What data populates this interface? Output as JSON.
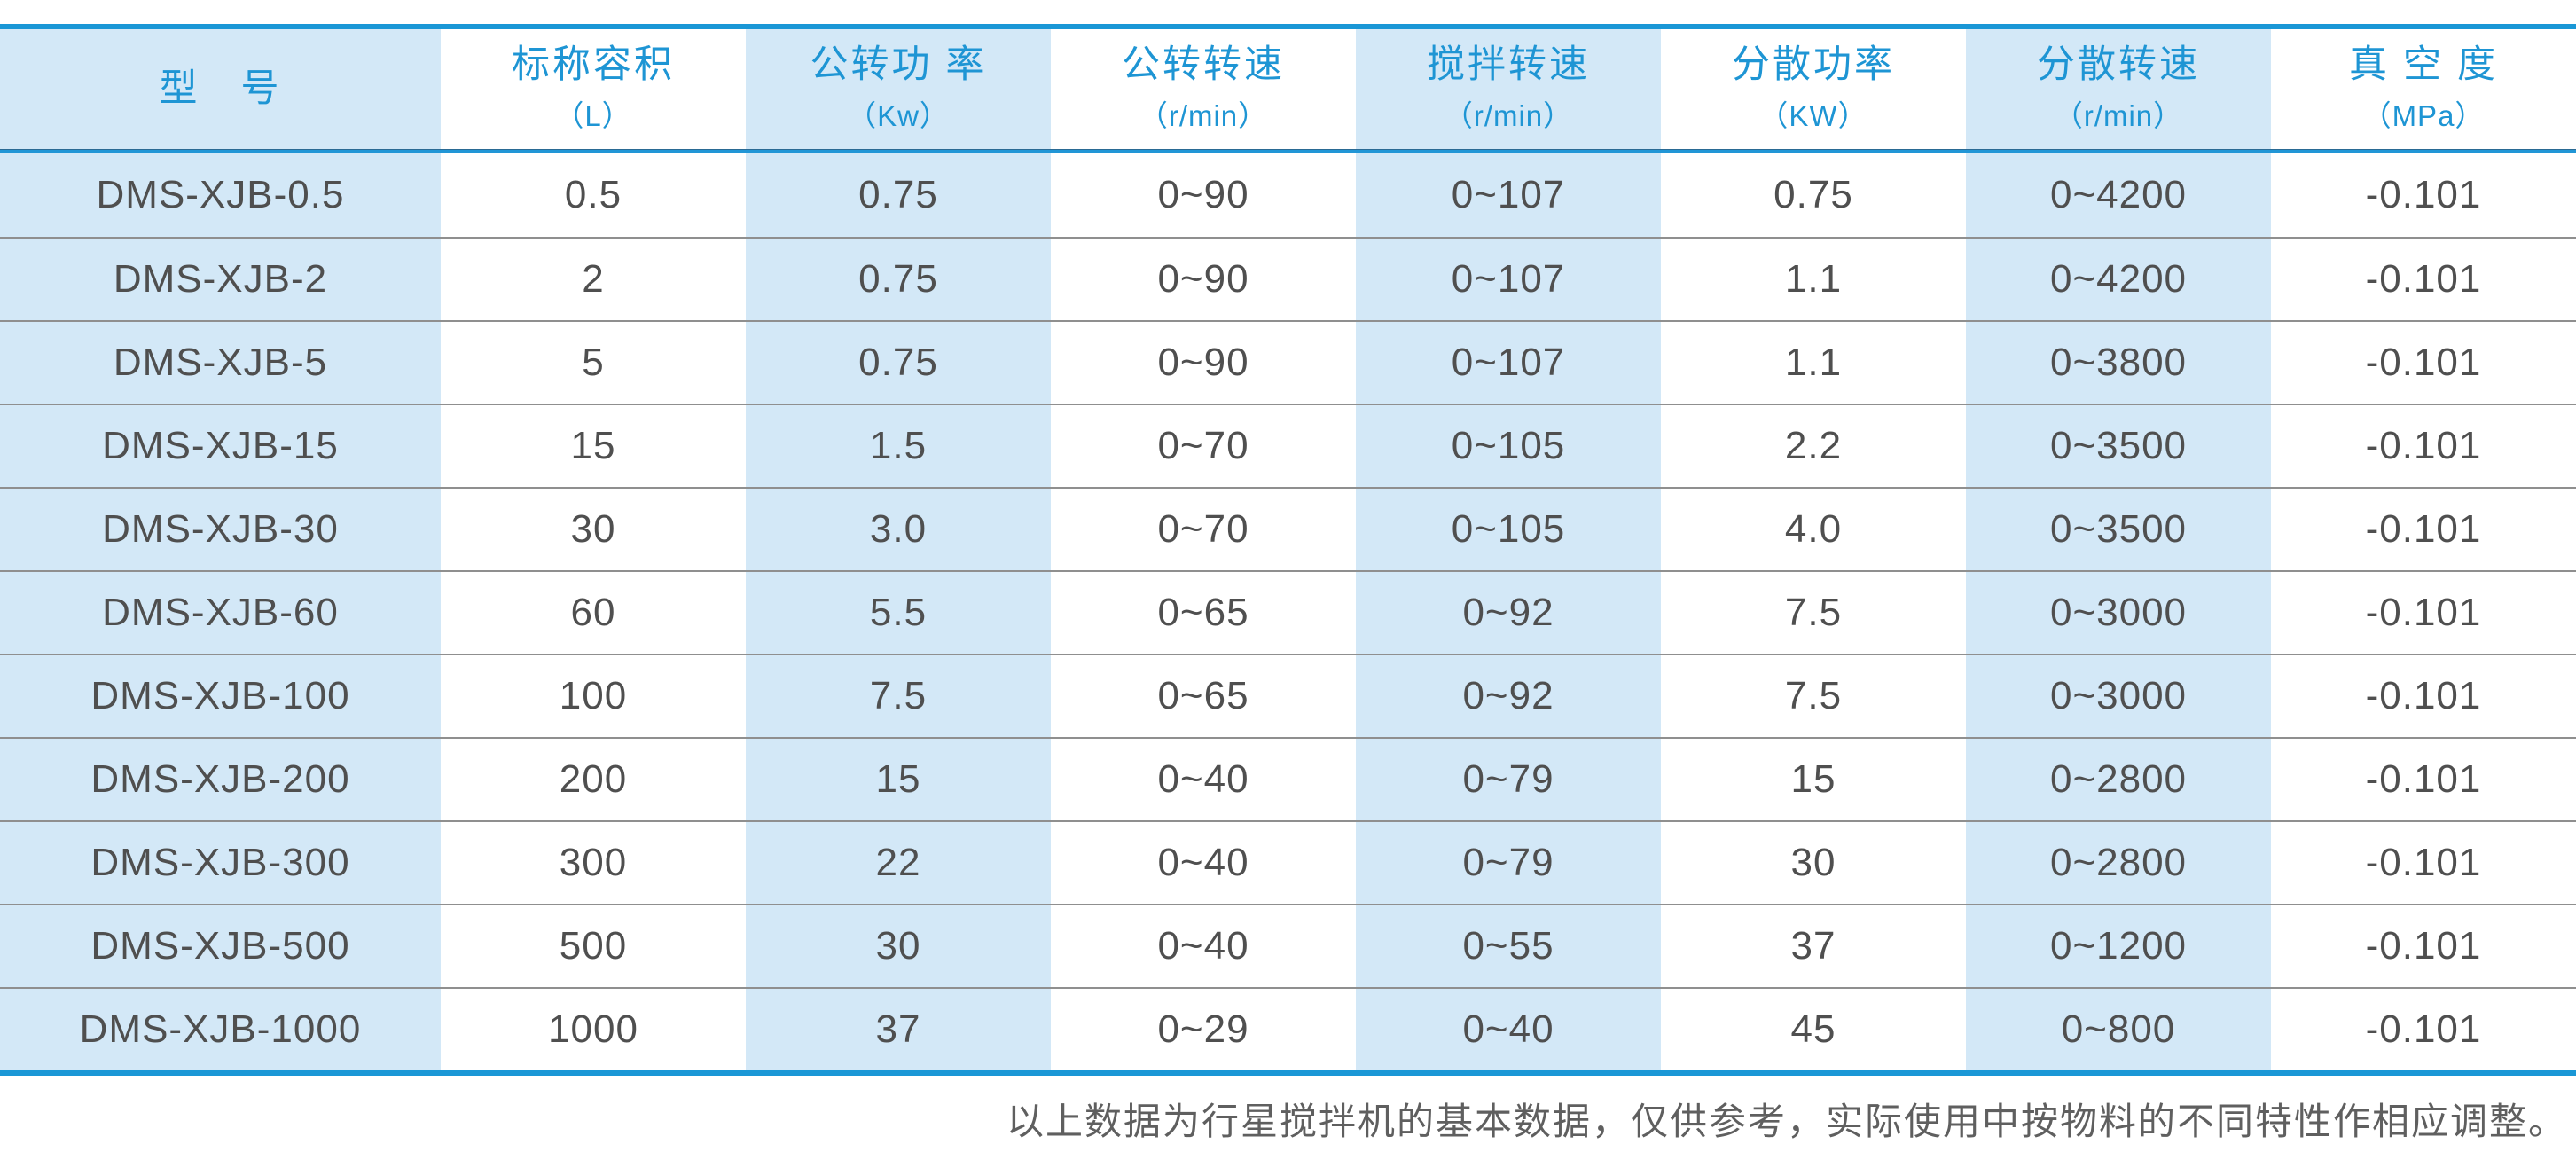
{
  "table": {
    "columns": [
      {
        "title": "型　号",
        "unit": ""
      },
      {
        "title": "标称容积",
        "unit": "（L）"
      },
      {
        "title": "公转功 率",
        "unit": "（Kw）"
      },
      {
        "title": "公转转速",
        "unit": "（r/min）"
      },
      {
        "title": "搅拌转速",
        "unit": "（r/min）"
      },
      {
        "title": "分散功率",
        "unit": "（KW）"
      },
      {
        "title": "分散转速",
        "unit": "（r/min）"
      },
      {
        "title": "真 空 度",
        "unit": "（MPa）"
      }
    ],
    "rows": [
      [
        "DMS-XJB-0.5",
        "0.5",
        "0.75",
        "0~90",
        "0~107",
        "0.75",
        "0~4200",
        "-0.101"
      ],
      [
        "DMS-XJB-2",
        "2",
        "0.75",
        "0~90",
        "0~107",
        "1.1",
        "0~4200",
        "-0.101"
      ],
      [
        "DMS-XJB-5",
        "5",
        "0.75",
        "0~90",
        "0~107",
        "1.1",
        "0~3800",
        "-0.101"
      ],
      [
        "DMS-XJB-15",
        "15",
        "1.5",
        "0~70",
        "0~105",
        "2.2",
        "0~3500",
        "-0.101"
      ],
      [
        "DMS-XJB-30",
        "30",
        "3.0",
        "0~70",
        "0~105",
        "4.0",
        "0~3500",
        "-0.101"
      ],
      [
        "DMS-XJB-60",
        "60",
        "5.5",
        "0~65",
        "0~92",
        "7.5",
        "0~3000",
        "-0.101"
      ],
      [
        "DMS-XJB-100",
        "100",
        "7.5",
        "0~65",
        "0~92",
        "7.5",
        "0~3000",
        "-0.101"
      ],
      [
        "DMS-XJB-200",
        "200",
        "15",
        "0~40",
        "0~79",
        "15",
        "0~2800",
        "-0.101"
      ],
      [
        "DMS-XJB-300",
        "300",
        "22",
        "0~40",
        "0~79",
        "30",
        "0~2800",
        "-0.101"
      ],
      [
        "DMS-XJB-500",
        "500",
        "30",
        "0~40",
        "0~55",
        "37",
        "0~1200",
        "-0.101"
      ],
      [
        "DMS-XJB-1000",
        "1000",
        "37",
        "0~29",
        "0~40",
        "45",
        "0~800",
        "-0.101"
      ]
    ]
  },
  "footer": {
    "note": "以上数据为行星搅拌机的基本数据，仅供参考，实际使用中按物料的不同特性作相应调整。"
  },
  "colors": {
    "accent": "#1a97d6",
    "header_text": "#1e95d4",
    "stripe": "#d3e8f7",
    "body_text": "#4f4f4f",
    "row_line": "#8f8f8f",
    "note_text": "#5f5f5f"
  }
}
